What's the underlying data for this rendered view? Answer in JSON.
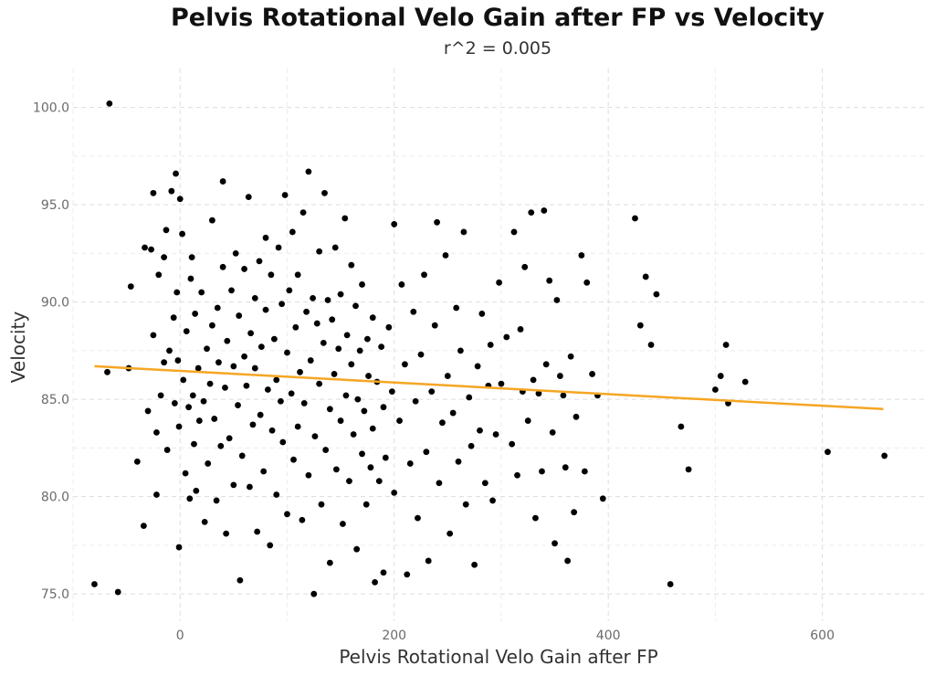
{
  "chart_data": {
    "type": "scatter",
    "title": "Pelvis Rotational Velo Gain after FP vs Velocity",
    "subtitle": "r^2 = 0.005",
    "xlabel": "Pelvis Rotational Velo Gain after FP",
    "ylabel": "Velocity",
    "xlim": [
      -100,
      695
    ],
    "ylim": [
      73.6,
      102
    ],
    "x_ticks": [
      0,
      200,
      400,
      600
    ],
    "y_ticks": [
      75,
      80,
      85,
      90,
      95,
      100
    ],
    "grid": true,
    "grid_style": "dashed",
    "point_color": "#000000",
    "trend_color": "#F5A623",
    "trend_line": {
      "x": [
        -80,
        657
      ],
      "y": [
        86.7,
        84.5
      ]
    },
    "series": [
      {
        "points": [
          [
            -66,
            100.2
          ],
          [
            -80,
            75.5
          ],
          [
            -58,
            75.1
          ],
          [
            -68,
            86.4
          ],
          [
            -40,
            81.8
          ],
          [
            -46,
            90.8
          ],
          [
            -48,
            86.6
          ],
          [
            -34,
            78.5
          ],
          [
            -33,
            92.8
          ],
          [
            -30,
            84.4
          ],
          [
            -27,
            92.7
          ],
          [
            -25,
            88.3
          ],
          [
            -22,
            80.1
          ],
          [
            -25,
            95.6
          ],
          [
            -20,
            91.4
          ],
          [
            -18,
            85.2
          ],
          [
            -22,
            83.3
          ],
          [
            -15,
            86.9
          ],
          [
            -15,
            92.3
          ],
          [
            -13,
            93.7
          ],
          [
            -10,
            87.5
          ],
          [
            -12,
            82.4
          ],
          [
            -8,
            95.7
          ],
          [
            -6,
            89.2
          ],
          [
            -5,
            84.8
          ],
          [
            -4,
            96.6
          ],
          [
            -3,
            90.5
          ],
          [
            -2,
            87.0
          ],
          [
            -1,
            83.6
          ],
          [
            -1,
            77.4
          ],
          [
            0,
            95.3
          ],
          [
            2,
            93.5
          ],
          [
            3,
            86.0
          ],
          [
            5,
            81.2
          ],
          [
            6,
            88.5
          ],
          [
            8,
            84.6
          ],
          [
            9,
            79.9
          ],
          [
            10,
            91.2
          ],
          [
            11,
            92.3
          ],
          [
            12,
            85.2
          ],
          [
            13,
            82.7
          ],
          [
            14,
            89.4
          ],
          [
            15,
            80.3
          ],
          [
            17,
            86.6
          ],
          [
            18,
            83.9
          ],
          [
            20,
            90.5
          ],
          [
            22,
            84.9
          ],
          [
            23,
            78.7
          ],
          [
            25,
            87.6
          ],
          [
            26,
            81.7
          ],
          [
            28,
            85.8
          ],
          [
            30,
            88.8
          ],
          [
            30,
            94.2
          ],
          [
            32,
            84.0
          ],
          [
            34,
            79.8
          ],
          [
            35,
            89.7
          ],
          [
            36,
            86.9
          ],
          [
            38,
            82.6
          ],
          [
            40,
            96.2
          ],
          [
            40,
            91.8
          ],
          [
            42,
            85.6
          ],
          [
            43,
            78.1
          ],
          [
            44,
            88.0
          ],
          [
            46,
            83.0
          ],
          [
            48,
            90.6
          ],
          [
            50,
            86.7
          ],
          [
            50,
            80.6
          ],
          [
            52,
            92.5
          ],
          [
            54,
            84.7
          ],
          [
            55,
            89.3
          ],
          [
            56,
            75.7
          ],
          [
            58,
            82.1
          ],
          [
            60,
            87.2
          ],
          [
            60,
            91.7
          ],
          [
            62,
            85.7
          ],
          [
            64,
            95.4
          ],
          [
            65,
            80.5
          ],
          [
            66,
            88.4
          ],
          [
            68,
            83.7
          ],
          [
            70,
            90.2
          ],
          [
            70,
            86.6
          ],
          [
            72,
            78.2
          ],
          [
            74,
            92.1
          ],
          [
            75,
            84.2
          ],
          [
            76,
            87.7
          ],
          [
            78,
            81.3
          ],
          [
            80,
            89.6
          ],
          [
            80,
            93.3
          ],
          [
            82,
            85.5
          ],
          [
            84,
            77.5
          ],
          [
            85,
            91.4
          ],
          [
            86,
            83.4
          ],
          [
            88,
            88.1
          ],
          [
            90,
            86.0
          ],
          [
            90,
            80.1
          ],
          [
            92,
            92.8
          ],
          [
            94,
            84.9
          ],
          [
            95,
            89.9
          ],
          [
            96,
            82.8
          ],
          [
            98,
            95.5
          ],
          [
            100,
            87.4
          ],
          [
            100,
            79.1
          ],
          [
            102,
            90.6
          ],
          [
            104,
            85.3
          ],
          [
            105,
            93.6
          ],
          [
            106,
            81.9
          ],
          [
            108,
            88.7
          ],
          [
            110,
            83.6
          ],
          [
            110,
            91.4
          ],
          [
            112,
            86.4
          ],
          [
            114,
            78.8
          ],
          [
            115,
            94.6
          ],
          [
            116,
            84.8
          ],
          [
            118,
            89.5
          ],
          [
            120,
            81.1
          ],
          [
            120,
            96.7
          ],
          [
            122,
            87.0
          ],
          [
            124,
            90.2
          ],
          [
            125,
            75.0
          ],
          [
            126,
            83.1
          ],
          [
            128,
            88.9
          ],
          [
            130,
            85.8
          ],
          [
            130,
            92.6
          ],
          [
            132,
            79.6
          ],
          [
            134,
            87.9
          ],
          [
            135,
            95.6
          ],
          [
            136,
            82.4
          ],
          [
            138,
            90.1
          ],
          [
            140,
            84.5
          ],
          [
            140,
            76.6
          ],
          [
            142,
            89.1
          ],
          [
            144,
            86.3
          ],
          [
            145,
            92.8
          ],
          [
            146,
            81.4
          ],
          [
            148,
            87.6
          ],
          [
            150,
            83.9
          ],
          [
            150,
            90.4
          ],
          [
            152,
            78.6
          ],
          [
            154,
            94.3
          ],
          [
            155,
            85.2
          ],
          [
            156,
            88.3
          ],
          [
            158,
            80.8
          ],
          [
            160,
            86.8
          ],
          [
            160,
            91.9
          ],
          [
            162,
            83.2
          ],
          [
            164,
            89.8
          ],
          [
            165,
            77.3
          ],
          [
            166,
            85.0
          ],
          [
            168,
            87.5
          ],
          [
            170,
            82.2
          ],
          [
            170,
            90.9
          ],
          [
            172,
            84.4
          ],
          [
            174,
            79.6
          ],
          [
            175,
            88.1
          ],
          [
            176,
            86.2
          ],
          [
            178,
            81.5
          ],
          [
            180,
            83.5
          ],
          [
            180,
            89.2
          ],
          [
            182,
            75.6
          ],
          [
            184,
            85.9
          ],
          [
            186,
            80.8
          ],
          [
            188,
            87.7
          ],
          [
            190,
            84.6
          ],
          [
            190,
            76.1
          ],
          [
            192,
            82.0
          ],
          [
            195,
            88.7
          ],
          [
            198,
            85.4
          ],
          [
            200,
            94.0
          ],
          [
            200,
            80.2
          ],
          [
            205,
            83.9
          ],
          [
            207,
            90.9
          ],
          [
            210,
            86.8
          ],
          [
            212,
            76.0
          ],
          [
            215,
            81.7
          ],
          [
            218,
            89.5
          ],
          [
            220,
            84.9
          ],
          [
            222,
            78.9
          ],
          [
            225,
            87.3
          ],
          [
            228,
            91.4
          ],
          [
            230,
            82.3
          ],
          [
            232,
            76.7
          ],
          [
            235,
            85.4
          ],
          [
            238,
            88.8
          ],
          [
            240,
            94.1
          ],
          [
            242,
            80.7
          ],
          [
            245,
            83.8
          ],
          [
            248,
            92.4
          ],
          [
            250,
            86.2
          ],
          [
            252,
            78.1
          ],
          [
            255,
            84.3
          ],
          [
            258,
            89.7
          ],
          [
            260,
            81.8
          ],
          [
            262,
            87.5
          ],
          [
            265,
            93.6
          ],
          [
            267,
            79.6
          ],
          [
            270,
            85.1
          ],
          [
            272,
            82.6
          ],
          [
            275,
            76.5
          ],
          [
            278,
            86.7
          ],
          [
            280,
            83.4
          ],
          [
            282,
            89.4
          ],
          [
            285,
            80.7
          ],
          [
            288,
            85.7
          ],
          [
            290,
            87.8
          ],
          [
            292,
            79.8
          ],
          [
            295,
            83.2
          ],
          [
            298,
            91.0
          ],
          [
            300,
            85.8
          ],
          [
            305,
            88.2
          ],
          [
            310,
            82.7
          ],
          [
            312,
            93.6
          ],
          [
            315,
            81.1
          ],
          [
            318,
            88.6
          ],
          [
            320,
            85.4
          ],
          [
            322,
            91.8
          ],
          [
            325,
            83.9
          ],
          [
            328,
            94.6
          ],
          [
            330,
            86.0
          ],
          [
            332,
            78.9
          ],
          [
            335,
            85.3
          ],
          [
            338,
            81.3
          ],
          [
            340,
            94.7
          ],
          [
            342,
            86.8
          ],
          [
            345,
            91.1
          ],
          [
            348,
            83.3
          ],
          [
            350,
            77.6
          ],
          [
            352,
            90.1
          ],
          [
            355,
            86.2
          ],
          [
            358,
            85.2
          ],
          [
            360,
            81.5
          ],
          [
            362,
            76.7
          ],
          [
            365,
            87.2
          ],
          [
            368,
            79.2
          ],
          [
            370,
            84.1
          ],
          [
            375,
            92.4
          ],
          [
            378,
            81.3
          ],
          [
            380,
            91.0
          ],
          [
            385,
            86.3
          ],
          [
            390,
            85.2
          ],
          [
            395,
            79.9
          ],
          [
            425,
            94.3
          ],
          [
            430,
            88.8
          ],
          [
            435,
            91.3
          ],
          [
            440,
            87.8
          ],
          [
            445,
            90.4
          ],
          [
            458,
            75.5
          ],
          [
            468,
            83.6
          ],
          [
            475,
            81.4
          ],
          [
            500,
            85.5
          ],
          [
            505,
            86.2
          ],
          [
            510,
            87.8
          ],
          [
            512,
            84.8
          ],
          [
            528,
            85.9
          ],
          [
            605,
            82.3
          ],
          [
            658,
            82.1
          ]
        ]
      }
    ]
  }
}
